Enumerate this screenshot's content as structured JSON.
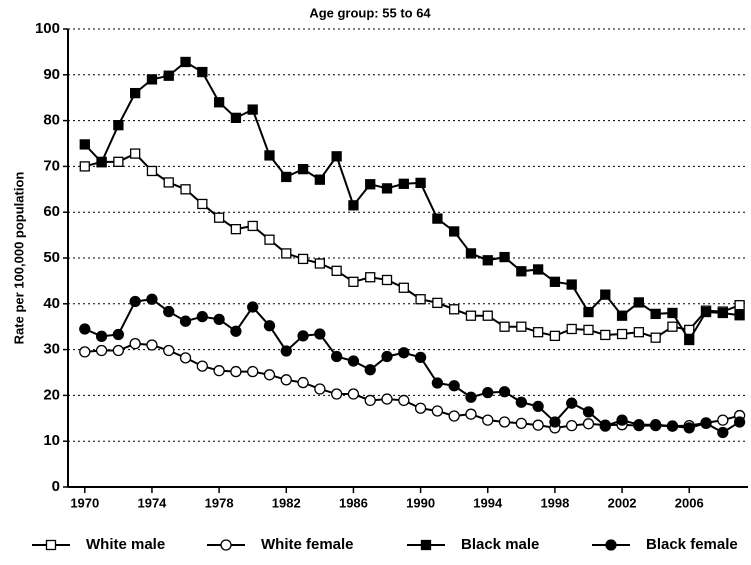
{
  "chart_data": {
    "type": "line",
    "title": "Age group: 55 to 64",
    "y_label": "Rate per 100,000 population",
    "x": [
      1970,
      1971,
      1972,
      1973,
      1974,
      1975,
      1976,
      1977,
      1978,
      1979,
      1980,
      1981,
      1982,
      1983,
      1984,
      1985,
      1986,
      1987,
      1988,
      1989,
      1990,
      1991,
      1992,
      1993,
      1994,
      1995,
      1996,
      1997,
      1998,
      1999,
      2000,
      2001,
      2002,
      2003,
      2004,
      2005,
      2006,
      2007,
      2008,
      2009
    ],
    "xlim": [
      1969,
      2009.5
    ],
    "xticks": [
      1970,
      1974,
      1978,
      1982,
      1986,
      1990,
      1994,
      1998,
      2002,
      2006
    ],
    "ylim": [
      0,
      100
    ],
    "yticks": [
      0,
      10,
      20,
      30,
      40,
      50,
      60,
      70,
      80,
      90,
      100
    ],
    "grid": true,
    "legend": "bottom",
    "series": [
      {
        "name": "White male",
        "color": "#000000",
        "marker": "square",
        "filled": false,
        "values": [
          70,
          71,
          71,
          72.8,
          69,
          66.5,
          65,
          61.8,
          58.8,
          56.3,
          57,
          54,
          51,
          49.8,
          48.8,
          47.2,
          44.8,
          45.8,
          45.2,
          43.5,
          41,
          40.2,
          38.8,
          37.4,
          37.4,
          35,
          35,
          33.8,
          33,
          34.5,
          34.3,
          33.2,
          33.4,
          33.8,
          32.6,
          35,
          34.3,
          38.5,
          38.3,
          39.7
        ]
      },
      {
        "name": "White female",
        "color": "#000000",
        "marker": "circle",
        "filled": false,
        "values": [
          29.5,
          29.8,
          29.8,
          31.3,
          31,
          29.8,
          28.2,
          26.4,
          25.4,
          25.2,
          25.2,
          24.5,
          23.4,
          22.8,
          21.4,
          20.3,
          20.3,
          18.9,
          19.2,
          18.9,
          17.2,
          16.6,
          15.5,
          15.9,
          14.6,
          14.2,
          13.9,
          13.5,
          12.9,
          13.4,
          13.8,
          13.5,
          13.6,
          13.4,
          13.4,
          13.3,
          13.4,
          14,
          14.6,
          15.6
        ]
      },
      {
        "name": "Black male",
        "color": "#000000",
        "marker": "square",
        "filled": true,
        "values": [
          74.8,
          70.9,
          79,
          86,
          89,
          89.8,
          92.8,
          90.6,
          84,
          80.6,
          82.4,
          72.4,
          67.7,
          69.4,
          67.1,
          72.2,
          61.5,
          66.1,
          65.2,
          66.2,
          66.4,
          58.6,
          55.8,
          51,
          49.5,
          50.2,
          47.1,
          47.5,
          44.8,
          44.2,
          38.2,
          42,
          37.4,
          40.3,
          37.8,
          38,
          32.1,
          38.2,
          38,
          37.5
        ]
      },
      {
        "name": "Black female",
        "color": "#000000",
        "marker": "circle",
        "filled": true,
        "values": [
          34.5,
          32.9,
          33.3,
          40.5,
          41,
          38.3,
          36.2,
          37.2,
          36.6,
          34,
          39.3,
          35.2,
          29.7,
          33,
          33.4,
          28.5,
          27.5,
          25.6,
          28.5,
          29.3,
          28.3,
          22.7,
          22.1,
          19.6,
          20.6,
          20.8,
          18.5,
          17.6,
          14.2,
          18.3,
          16.4,
          13.3,
          14.6,
          13.6,
          13.6,
          13.3,
          12.9,
          13.9,
          11.9,
          14.2
        ]
      }
    ]
  }
}
